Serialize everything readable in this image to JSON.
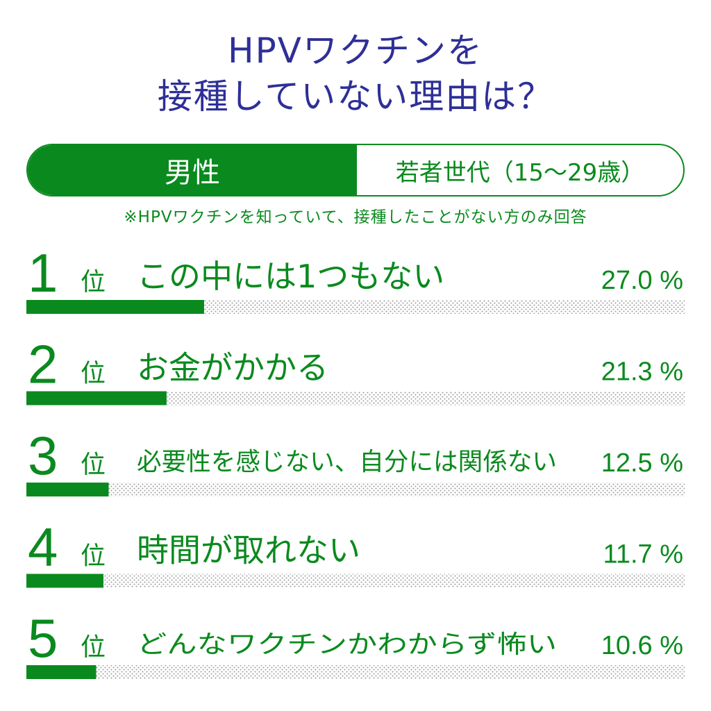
{
  "header": {
    "title_line1": "HPVワクチンを",
    "title_line2": "接種していない理由は？"
  },
  "tabs": {
    "active": "男性",
    "inactive": "若者世代（15〜29歳）"
  },
  "note": "※HPVワクチンを知っていて、接種したことがない方のみ回答",
  "colors": {
    "title": "#2e2f97",
    "accent": "#0a8a1e",
    "dots": "#9a9a9a"
  },
  "chart_data": {
    "type": "bar",
    "orientation": "horizontal",
    "rank_suffix": "位",
    "percent_suffix": " %",
    "xlim": [
      0,
      100
    ],
    "categories": [
      "この中には1つもない",
      "お金がかかる",
      "必要性を感じない、自分には関係ない",
      "時間が取れない",
      "どんなワクチンかわからず怖い"
    ],
    "ranks": [
      "1",
      "2",
      "3",
      "4",
      "5"
    ],
    "values": [
      27.0,
      21.3,
      12.5,
      11.7,
      10.6
    ],
    "value_labels": [
      "27.0",
      "21.3",
      "12.5",
      "11.7",
      "10.6"
    ]
  }
}
